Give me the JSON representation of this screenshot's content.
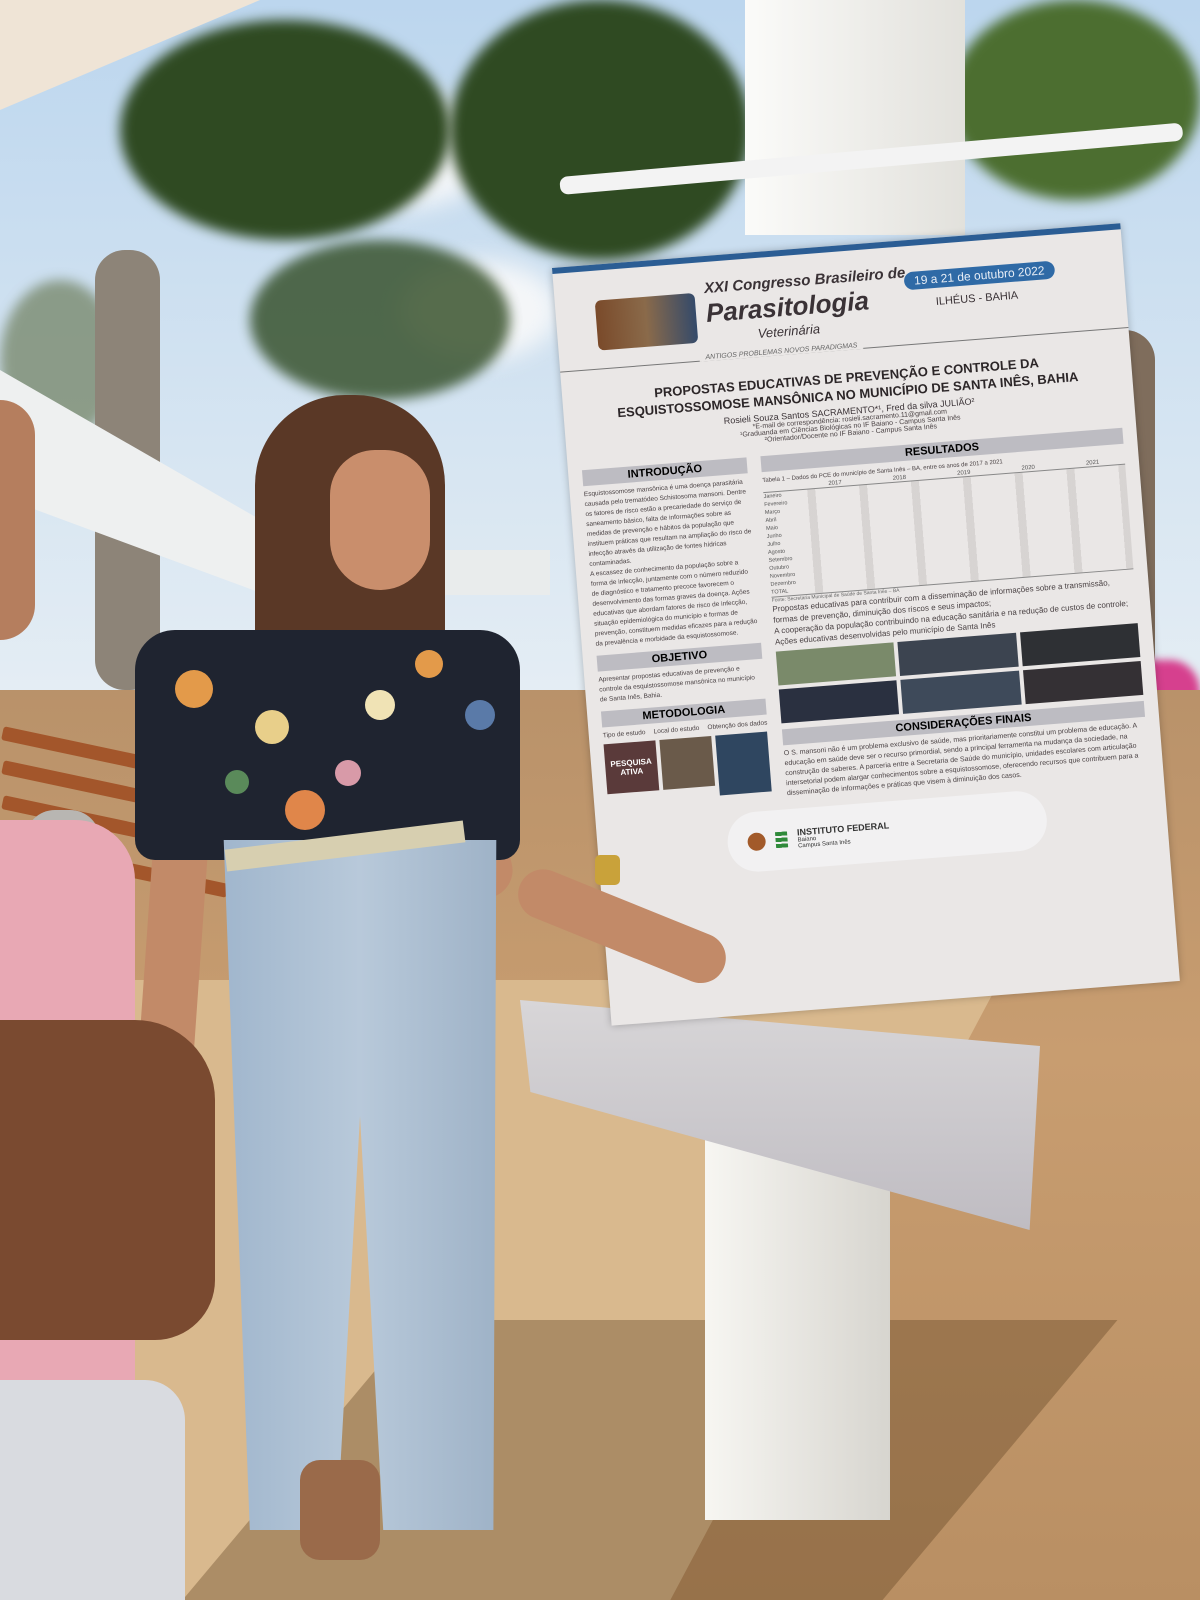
{
  "poster": {
    "event_line1": "XXI Congresso Brasileiro de",
    "event_line2": "Parasitologia",
    "event_line3": "Veterinária",
    "tagline": "ANTIGOS PROBLEMAS NOVOS PARADIGMAS",
    "dates": "19 a 21 de outubro 2022",
    "location": "ILHÉUS - BAHIA",
    "title_line1": "PROPOSTAS EDUCATIVAS DE PREVENÇÃO E CONTROLE DA",
    "title_line2": "ESQUISTOSSOMOSE MANSÔNICA NO  MUNICÍPIO DE SANTA INÊS, BAHIA",
    "authors": "Rosieli Souza Santos SACRAMENTO*¹, Fred da silva JULIÃO²",
    "email": "*E-mail de correspondência: rosieli.sacramento.11@gmail.com",
    "affiliation1": "¹Graduanda em Ciências Biológicas no IF Baiano - Campus Santa Inês",
    "affiliation2": "²Orientador/Docente no IF Baiano - Campus Santa Inês",
    "intro_heading": "INTRODUÇÃO",
    "intro_p1": "Esquistossomose mansônica é uma doença parasitária causada pelo trematódeo Schistosoma mansoni. Dentre os fatores de risco estão a precariedade do serviço de saneamento básico, falta de informações sobre as medidas de prevenção e hábitos da população que instituem práticas que resultam na ampliação do risco de infecção através da utilização de fontes hídricas contaminadas.",
    "intro_p2": "A escassez de conhecimento da população sobre a forma de infecção, juntamente com o número reduzido de diagnóstico e tratamento precoce favorecem o desenvolvimento das formas graves da doença. Ações educativas que abordam fatores de risco de infecção, situação epidemiológica do município e formas de prevenção, constituem medidas eficazes para a redução da prevalência e morbidade da esquistossomose.",
    "objective_heading": "OBJETIVO",
    "objective_text": "Apresentar propostas educativas de prevenção e controle da esquistossomose mansônica no município de Santa Inês, Bahia.",
    "method_heading": "METODOLOGIA",
    "method_labels": [
      "Tipo de estudo",
      "Local do estudo",
      "Obtenção dos dados"
    ],
    "method_badge": "PESQUISA ATIVA",
    "results_heading": "RESULTADOS",
    "table_caption": "Tabela 1 – Dados do PCE do município de Santa Inês – BA, entre os anos de 2017 a 2021",
    "table_years": [
      "2017",
      "2018",
      "2019",
      "2020",
      "2021"
    ],
    "table_subcols": [
      "EX",
      "POS"
    ],
    "table_months": [
      "Janeiro",
      "Fevereiro",
      "Março",
      "Abril",
      "Maio",
      "Junho",
      "Julho",
      "Agosto",
      "Setembro",
      "Outubro",
      "Novembro",
      "Dezembro",
      "TOTAL"
    ],
    "table_source": "Fonte: Secretaria Municipal de Saúde de Santa Inês – BA",
    "results_b1": "Propostas educativas para contribuir com a disseminação de informações sobre a transmissão, formas de prevenção, diminuição dos riscos e seus impactos;",
    "results_b2": "A cooperação da população contribuindo na educação sanitária e na redução de custos de controle;",
    "results_b3": "Ações educativas desenvolvidas pelo município de Santa Inês",
    "final_heading": "CONSIDERAÇÕES FINAIS",
    "final_text": "O S. mansoni não é um problema exclusivo de saúde, mas prioritariamente constitui um problema de educação. A educação em saúde deve ser o recurso primordial, sendo a principal ferramenta na mudança da sociedade, na construção de saberes. A parceria entre a Secretaria de Saúde do município, unidades escolares com articulação intersetorial podem alargar conhecimentos sobre a esquistossomose, oferecendo recursos que contribuem para a disseminação de informações e práticas que visem à diminuição dos casos.",
    "footer_logo": "INSTITUTO FEDERAL",
    "footer_sub1": "Baiano",
    "footer_sub2": "Campus Santa Inês"
  },
  "colors": {
    "poster_accent": "#2b5d94",
    "section_header": "#bdbcc2",
    "date_badge": "#2f6aa6"
  }
}
